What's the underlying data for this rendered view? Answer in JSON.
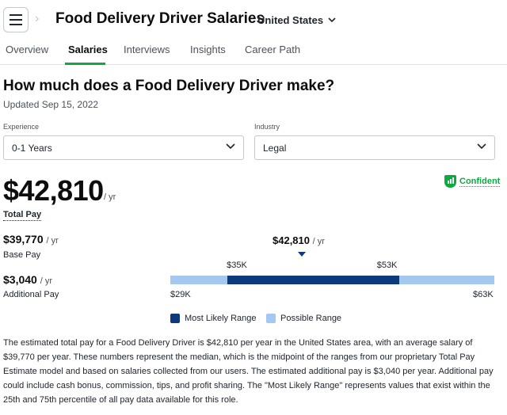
{
  "header": {
    "title": "Food Delivery Driver Salaries",
    "country": "United States",
    "crumb_chevron": "›",
    "country_chevron": "▾"
  },
  "tabs": [
    {
      "label": "Overview",
      "active": false
    },
    {
      "label": "Salaries",
      "active": true
    },
    {
      "label": "Interviews",
      "active": false
    },
    {
      "label": "Insights",
      "active": false
    },
    {
      "label": "Career Path",
      "active": false
    }
  ],
  "main": {
    "heading": "How much does a Food Delivery Driver make?",
    "updated": "Updated Sep 15, 2022"
  },
  "filters": {
    "experience": {
      "label": "Experience",
      "value": "0-1 Years"
    },
    "industry": {
      "label": "Industry",
      "value": "Legal"
    }
  },
  "total_pay": {
    "amount": "$42,810",
    "unit": "/ yr",
    "label": "Total Pay",
    "confidence": "Confident"
  },
  "base_pay": {
    "amount": "$39,770",
    "unit": "/ yr",
    "label": "Base Pay"
  },
  "additional_pay": {
    "amount": "$3,040",
    "unit": "/ yr",
    "label": "Additional Pay"
  },
  "range": {
    "median_amount": "$42,810",
    "median_unit": "/ yr",
    "min": 29000,
    "max": 63000,
    "likely_low": 35000,
    "likely_high": 53000,
    "median": 42810,
    "min_label": "$29K",
    "max_label": "$63K",
    "likely_low_label": "$35K",
    "likely_high_label": "$53K"
  },
  "legend": {
    "likely": "Most Likely Range",
    "possible": "Possible Range",
    "likely_color": "#0c3a7d",
    "possible_color": "#a4c8f0"
  },
  "description": "The estimated total pay for a Food Delivery Driver is $42,810 per year in the United States area, with an average salary of $39,770 per year. These numbers represent the median, which is the midpoint of the ranges from our proprietary Total Pay Estimate model and based on salaries collected from our users. The estimated additional pay is $3,040 per year. Additional pay could include cash bonus, commission, tips, and profit sharing. The \"Most Likely Range\" represents values that exist within the 25th and 75th percentile of all pay data available for this role.",
  "colors": {
    "accent": "#0caa41",
    "text": "#20262e"
  }
}
